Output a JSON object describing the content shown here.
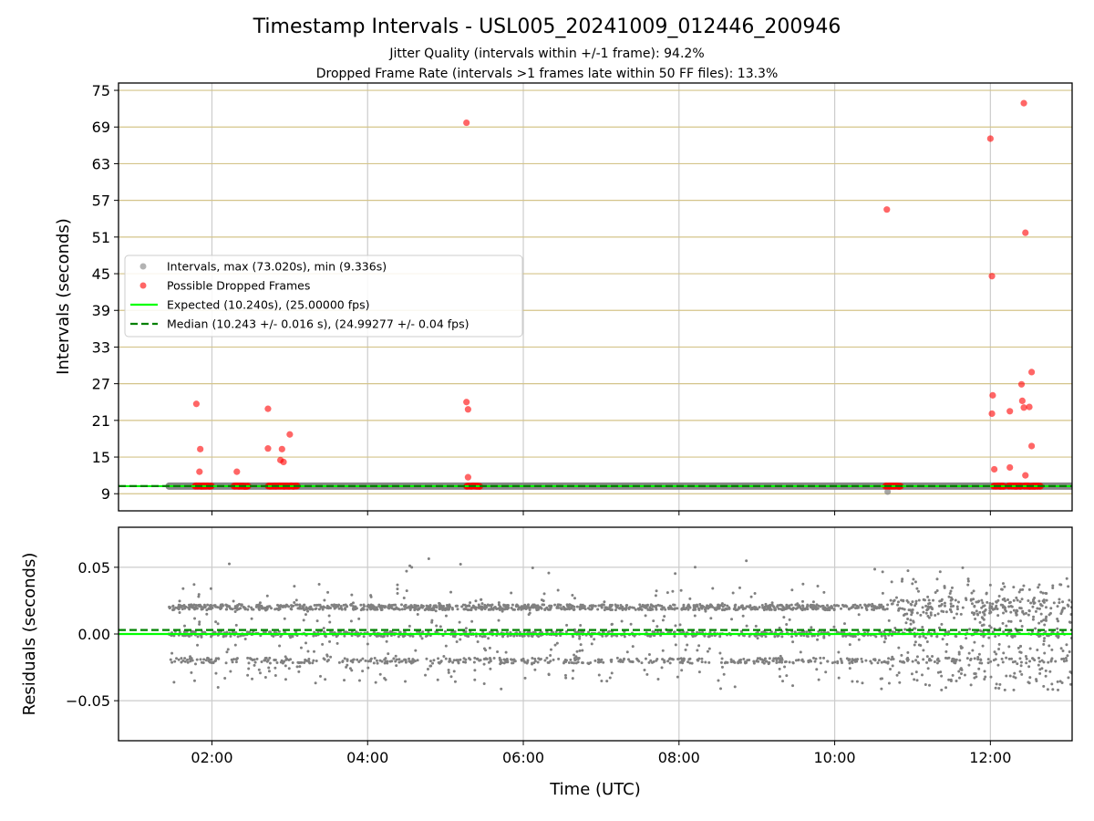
{
  "figure": {
    "title": "Timestamp Intervals - USL005_20241009_012446_200946",
    "subtitle_1": "Jitter Quality (intervals within +/-1 frame): 94.2%",
    "subtitle_2": "Dropped Frame Rate (intervals >1 frames late within 50 FF files): 13.3%"
  },
  "chart_data": [
    {
      "type": "scatter",
      "panel": "top",
      "ylabel": "Intervals (seconds)",
      "xlabel": "",
      "x_axis": "time (UTC, hours)",
      "xlim": [
        0.8,
        13.05
      ],
      "ylim": [
        6.2,
        76.2
      ],
      "x_ticks": [
        2,
        4,
        6,
        8,
        10,
        12
      ],
      "x_tick_labels": [
        "02:00",
        "04:00",
        "06:00",
        "08:00",
        "10:00",
        "12:00"
      ],
      "y_ticks": [
        9,
        15,
        21,
        27,
        33,
        39,
        45,
        51,
        57,
        63,
        69,
        75
      ],
      "y_tick_labels": [
        "9",
        "15",
        "21",
        "27",
        "33",
        "39",
        "45",
        "51",
        "57",
        "63",
        "69",
        "75"
      ],
      "grid": true,
      "legend_position": "center-left",
      "colors": {
        "intervals": "#808080",
        "dropped": "#ff0000",
        "expected": "#00ff00",
        "median": "#008000",
        "hgrid": "#d4c48a",
        "vgrid": "#cccccc"
      },
      "expected_value": 10.24,
      "median_value": 10.243,
      "intervals_band": {
        "x_range": [
          1.45,
          13.05
        ],
        "value": 10.24,
        "min_point": {
          "x": 10.68,
          "y": 9.336
        }
      },
      "series": [
        {
          "name": "Intervals, max (73.020s), min (9.336s)",
          "kind": "scatter",
          "color": "#808080"
        },
        {
          "name": "Possible Dropped Frames",
          "kind": "scatter",
          "color": "#ff0000",
          "points": [
            [
              1.8,
              23.7
            ],
            [
              1.85,
              16.3
            ],
            [
              1.84,
              12.6
            ],
            [
              2.32,
              12.6
            ],
            [
              2.72,
              22.9
            ],
            [
              2.72,
              16.4
            ],
            [
              2.88,
              14.5
            ],
            [
              2.9,
              16.3
            ],
            [
              2.92,
              14.2
            ],
            [
              3.0,
              18.7
            ],
            [
              5.27,
              69.7
            ],
            [
              5.27,
              24.0
            ],
            [
              5.29,
              22.8
            ],
            [
              5.29,
              11.7
            ],
            [
              10.67,
              55.5
            ],
            [
              12.0,
              67.1
            ],
            [
              12.02,
              44.6
            ],
            [
              12.02,
              22.1
            ],
            [
              12.03,
              25.1
            ],
            [
              12.05,
              13.0
            ],
            [
              12.25,
              22.5
            ],
            [
              12.25,
              13.3
            ],
            [
              12.4,
              26.9
            ],
            [
              12.41,
              24.2
            ],
            [
              12.43,
              23.1
            ],
            [
              12.43,
              72.9
            ],
            [
              12.45,
              51.7
            ],
            [
              12.45,
              12.0
            ],
            [
              12.5,
              23.2
            ],
            [
              12.53,
              16.8
            ],
            [
              12.53,
              28.9
            ]
          ],
          "clusters_at_10_24": [
            [
              1.78,
              2.0
            ],
            [
              2.28,
              2.47
            ],
            [
              2.72,
              3.1
            ],
            [
              5.27,
              5.45
            ],
            [
              10.65,
              10.85
            ],
            [
              12.04,
              12.18
            ],
            [
              12.23,
              12.4
            ],
            [
              12.43,
              12.65
            ]
          ]
        },
        {
          "name": "Expected (10.240s), (25.00000 fps)",
          "kind": "line",
          "color": "#00ff00",
          "y": 10.24
        },
        {
          "name": "Median (10.243 +/- 0.016 s), (24.99277 +/- 0.04 fps)",
          "kind": "dashed-line",
          "color": "#008000",
          "y": 10.243
        }
      ]
    },
    {
      "type": "scatter",
      "panel": "bottom",
      "xlabel": "Time (UTC)",
      "ylabel": "Residuals (seconds)",
      "xlim": [
        0.8,
        13.05
      ],
      "ylim": [
        -0.08,
        0.08
      ],
      "x_ticks": [
        2,
        4,
        6,
        8,
        10,
        12
      ],
      "x_tick_labels": [
        "02:00",
        "04:00",
        "06:00",
        "08:00",
        "10:00",
        "12:00"
      ],
      "y_ticks": [
        0.05,
        0.0,
        -0.05
      ],
      "y_tick_labels": [
        "0.05",
        "0.00",
        "−0.05"
      ],
      "grid": true,
      "residual_range": [
        -0.042,
        0.058
      ],
      "band_levels": [
        -0.02,
        0.0,
        0.02
      ],
      "residual_x_range": [
        1.45,
        13.05
      ],
      "expected_line": {
        "y": 0.0,
        "color": "#00ff00"
      },
      "median_line": {
        "y": 0.003,
        "color": "#008000"
      },
      "series": [
        {
          "kind": "scatter",
          "color": "#808080"
        }
      ]
    }
  ]
}
